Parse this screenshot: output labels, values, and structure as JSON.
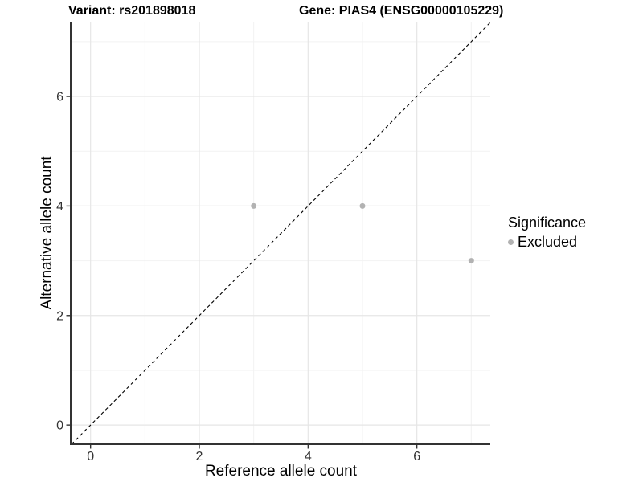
{
  "titles": {
    "variant": "Variant: rs201898018",
    "gene": "Gene: PIAS4 (ENSG00000105229)"
  },
  "axes": {
    "x_label": "Reference allele count",
    "y_label": "Alternative allele count",
    "x_tick_labels": [
      "0",
      "2",
      "4",
      "6"
    ],
    "y_tick_labels": [
      "0",
      "2",
      "4",
      "6"
    ]
  },
  "legend": {
    "title": "Significance",
    "items": [
      {
        "label": "Excluded",
        "color": "#b2b2b2",
        "marker": "circle-icon"
      }
    ]
  },
  "colors": {
    "point": "#b2b2b2",
    "major_grid": "#e6e6e6",
    "minor_grid": "#f2f2f2",
    "axis_line": "#333333",
    "tick_label": "#333333",
    "reference_line": "#000000"
  },
  "chart_data": {
    "type": "scatter",
    "title": "Variant: rs201898018 | Gene: PIAS4 (ENSG00000105229)",
    "xlabel": "Reference allele count",
    "ylabel": "Alternative allele count",
    "xlim": [
      -0.35,
      7.35
    ],
    "ylim": [
      -0.35,
      7.35
    ],
    "x_major_ticks": [
      0,
      2,
      4,
      6
    ],
    "y_major_ticks": [
      0,
      2,
      4,
      6
    ],
    "x_minor_gridlines": [
      1,
      3,
      5,
      7
    ],
    "y_minor_gridlines": [
      1,
      3,
      5,
      7
    ],
    "grid": true,
    "legend_position": "right",
    "series": [
      {
        "name": "Excluded",
        "color": "#b2b2b2",
        "marker_radius": 3.5,
        "points": [
          [
            3,
            4
          ],
          [
            5,
            4
          ],
          [
            7,
            3
          ]
        ]
      }
    ],
    "reference_line": {
      "type": "identity",
      "style": "dashed",
      "color": "#000000"
    }
  }
}
